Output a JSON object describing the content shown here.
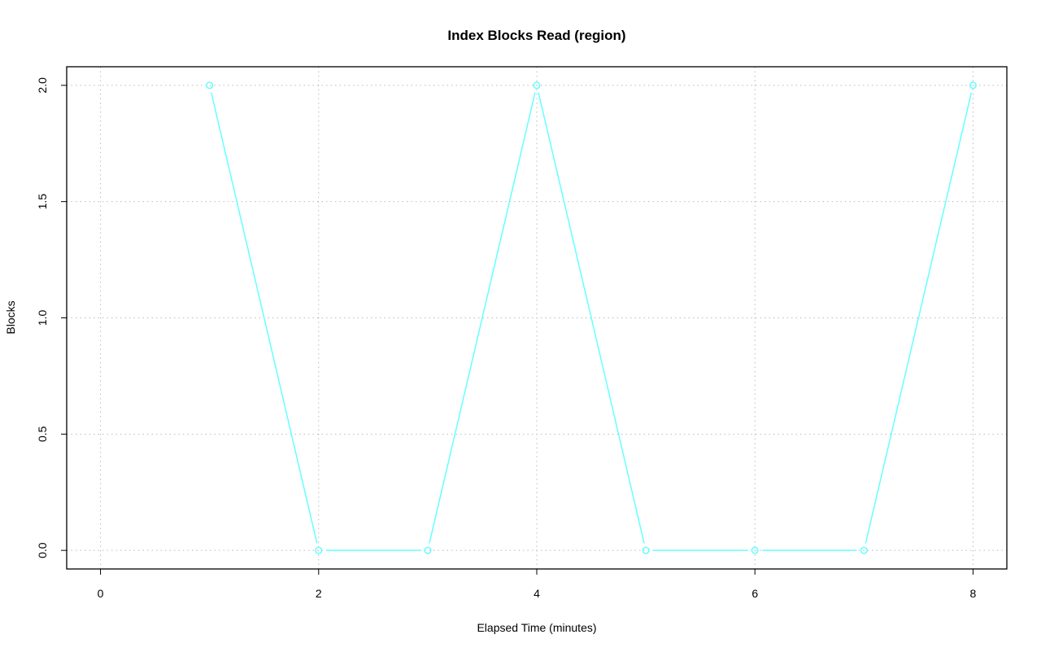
{
  "chart_data": {
    "type": "line",
    "title": "Index Blocks Read (region)",
    "xlabel": "Elapsed Time (minutes)",
    "ylabel": "Blocks",
    "x": [
      1,
      2,
      3,
      4,
      5,
      6,
      7,
      8
    ],
    "series": [
      {
        "values": [
          2,
          0,
          0,
          2,
          0,
          0,
          0,
          2
        ],
        "color": "#66FFFF"
      }
    ],
    "xlim": [
      -0.31,
      8.31
    ],
    "ylim": [
      -0.08,
      2.08
    ],
    "xticks": [
      "0",
      "2",
      "4",
      "6",
      "8"
    ],
    "yticks": [
      "0.0",
      "0.5",
      "1.0",
      "1.5",
      "2.0"
    ],
    "grid": true,
    "markers": "open-circle"
  }
}
